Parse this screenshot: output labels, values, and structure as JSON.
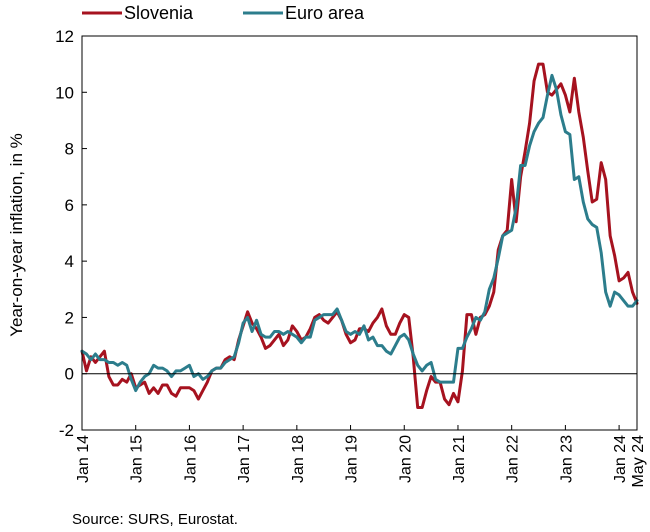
{
  "chart_data": {
    "type": "line",
    "xlabel": "",
    "ylabel": "Year-on-year inflation, in %",
    "ylim": [
      -2,
      12
    ],
    "yticks": [
      "-2",
      "0",
      "2",
      "4",
      "6",
      "8",
      "10",
      "12"
    ],
    "xlim_months": [
      "2014-01",
      "2024-05"
    ],
    "xticks": [
      "Jan 14",
      "Jan 15",
      "Jan 16",
      "Jan 17",
      "Jan 18",
      "Jan 19",
      "Jan 20",
      "Jan 21",
      "Jan 22",
      "Jan 23",
      "Jan 24",
      "May 24"
    ],
    "grid": false,
    "legend_position": "top",
    "source": "Source: SURS, Eurostat.",
    "series": [
      {
        "name": "Slovenia",
        "color": "#a6121f",
        "start": "2014-01",
        "values": [
          0.8,
          0.1,
          0.6,
          0.4,
          0.6,
          0.8,
          -0.1,
          -0.4,
          -0.4,
          -0.2,
          -0.3,
          0.0,
          -0.5,
          -0.4,
          -0.3,
          -0.7,
          -0.5,
          -0.7,
          -0.4,
          -0.4,
          -0.7,
          -0.8,
          -0.5,
          -0.5,
          -0.5,
          -0.6,
          -0.9,
          -0.6,
          -0.3,
          0.1,
          0.2,
          0.2,
          0.5,
          0.6,
          0.5,
          1.2,
          1.7,
          2.2,
          1.8,
          1.6,
          1.3,
          0.9,
          1.0,
          1.2,
          1.4,
          1.0,
          1.2,
          1.7,
          1.5,
          1.2,
          1.3,
          1.6,
          2.0,
          2.1,
          1.9,
          1.8,
          2.0,
          2.2,
          1.9,
          1.4,
          1.1,
          1.2,
          1.6,
          1.6,
          1.5,
          1.8,
          2.0,
          2.3,
          1.7,
          1.4,
          1.4,
          1.8,
          2.1,
          2.0,
          0.6,
          -1.2,
          -1.2,
          -0.6,
          -0.1,
          -0.3,
          -0.3,
          -0.9,
          -1.1,
          -0.7,
          -1.0,
          0.1,
          2.1,
          2.1,
          1.4,
          2.0,
          2.1,
          2.4,
          2.9,
          4.4,
          4.9,
          5.1,
          6.9,
          5.4,
          7.0,
          7.9,
          8.9,
          10.4,
          11.0,
          11.0,
          10.0,
          9.9,
          10.1,
          10.3,
          9.9,
          9.3,
          10.5,
          9.3,
          8.4,
          7.2,
          6.1,
          6.2,
          7.5,
          6.9,
          4.9,
          4.2,
          3.3,
          3.4,
          3.6,
          2.9,
          2.5
        ]
      },
      {
        "name": "Euro area",
        "color": "#2c7d8c",
        "start": "2014-01",
        "values": [
          0.8,
          0.7,
          0.5,
          0.7,
          0.5,
          0.5,
          0.4,
          0.4,
          0.3,
          0.4,
          0.3,
          -0.2,
          -0.6,
          -0.3,
          -0.1,
          0.0,
          0.3,
          0.2,
          0.2,
          0.1,
          -0.1,
          0.1,
          0.1,
          0.2,
          0.3,
          -0.1,
          0.0,
          -0.2,
          -0.1,
          0.1,
          0.2,
          0.2,
          0.4,
          0.5,
          0.6,
          1.1,
          1.8,
          2.0,
          1.5,
          1.9,
          1.4,
          1.3,
          1.3,
          1.5,
          1.5,
          1.4,
          1.5,
          1.4,
          1.3,
          1.1,
          1.3,
          1.3,
          1.9,
          2.0,
          2.1,
          2.1,
          2.1,
          2.3,
          1.9,
          1.5,
          1.4,
          1.5,
          1.4,
          1.7,
          1.2,
          1.3,
          1.0,
          1.0,
          0.8,
          0.7,
          1.0,
          1.3,
          1.4,
          1.2,
          0.7,
          0.3,
          0.1,
          0.3,
          0.4,
          -0.2,
          -0.3,
          -0.3,
          -0.3,
          -0.3,
          0.9,
          0.9,
          1.3,
          1.6,
          2.0,
          1.9,
          2.2,
          3.0,
          3.4,
          4.1,
          4.9,
          5.0,
          5.1,
          5.9,
          7.4,
          7.4,
          8.1,
          8.6,
          8.9,
          9.1,
          9.9,
          10.6,
          10.1,
          9.2,
          8.6,
          8.5,
          6.9,
          7.0,
          6.1,
          5.5,
          5.3,
          5.2,
          4.3,
          2.9,
          2.4,
          2.9,
          2.8,
          2.6,
          2.4,
          2.4,
          2.6
        ]
      }
    ]
  }
}
